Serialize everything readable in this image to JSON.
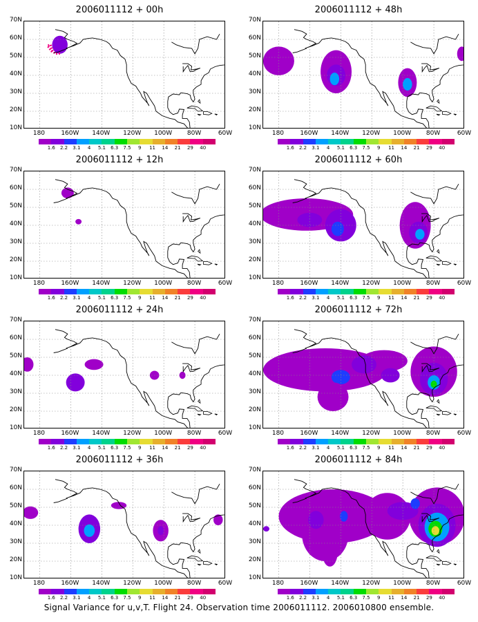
{
  "caption": "Signal Variance for u,v,T. Flight 24. Observation time 2006011112. 2006010800 ensemble.",
  "panels": [
    {
      "title": "2006011112 + 00h",
      "lead_hours": 0
    },
    {
      "title": "2006011112 + 48h",
      "lead_hours": 48
    },
    {
      "title": "2006011112 + 12h",
      "lead_hours": 12
    },
    {
      "title": "2006011112 + 60h",
      "lead_hours": 60
    },
    {
      "title": "2006011112 + 24h",
      "lead_hours": 24
    },
    {
      "title": "2006011112 + 72h",
      "lead_hours": 72
    },
    {
      "title": "2006011112 + 36h",
      "lead_hours": 36
    },
    {
      "title": "2006011112 + 84h",
      "lead_hours": 84
    }
  ],
  "axes": {
    "lat_labels": [
      "70N",
      "60N",
      "50N",
      "40N",
      "30N",
      "20N",
      "10N"
    ],
    "lon_labels": [
      "180",
      "160W",
      "140W",
      "120W",
      "100W",
      "80W",
      "60W"
    ],
    "lat_range": [
      10,
      70
    ],
    "lon_range": [
      -190,
      -60
    ]
  },
  "colorbar": {
    "labels": [
      "1.6",
      "2.2",
      "3.1",
      "4",
      "5.1",
      "6.3",
      "7.5",
      "9",
      "11",
      "14",
      "21",
      "29",
      "40"
    ],
    "colors": [
      "#a000c8",
      "#8200dc",
      "#1e3cff",
      "#00a0ff",
      "#00c8c8",
      "#00d28c",
      "#00dc00",
      "#a0e632",
      "#e6dc32",
      "#e6af2d",
      "#f08228",
      "#fa3c3c",
      "#f00082"
    ]
  }
}
